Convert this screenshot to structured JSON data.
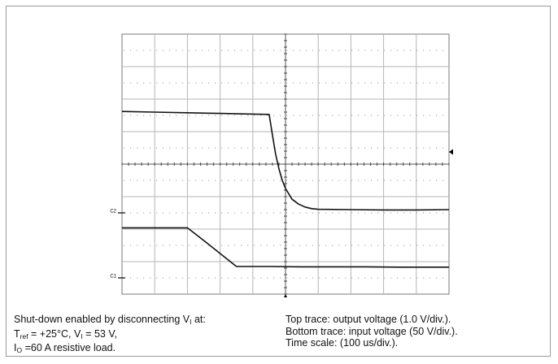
{
  "chart_data": {
    "type": "line",
    "x_divisions": 10,
    "y_divisions": 8,
    "time_per_div_us": 100,
    "series": [
      {
        "channel": "C2",
        "x": [
          0,
          10,
          20,
          30,
          40,
          45,
          46,
          47,
          48,
          49,
          50,
          52,
          54,
          56,
          58,
          60,
          70,
          80,
          90,
          100
        ],
        "y": [
          5.62,
          5.6,
          5.58,
          5.56,
          5.54,
          5.53,
          4.9,
          4.3,
          3.85,
          3.5,
          3.25,
          2.92,
          2.77,
          2.68,
          2.63,
          2.61,
          2.6,
          2.59,
          2.59,
          2.6
        ]
      },
      {
        "channel": "C1",
        "x": [
          0,
          10,
          15,
          20,
          25,
          30,
          35,
          45,
          55,
          65,
          75,
          85,
          100
        ],
        "y": [
          2.04,
          2.04,
          2.04,
          2.04,
          1.65,
          1.25,
          0.85,
          0.85,
          0.84,
          0.84,
          0.84,
          0.83,
          0.83
        ]
      }
    ],
    "ground_markers": [
      {
        "label": "C2",
        "division": 2.5
      },
      {
        "label": "C1",
        "division": 0.5
      }
    ]
  },
  "caption": {
    "left": {
      "line1_text": "Shut-down enabled by disconnecting V",
      "line1_sub": "I",
      "line1_tail": " at:",
      "line2_t": "T",
      "line2_t_sub": "ref",
      "line2_mid": " = +25°C, V",
      "line2_v_sub": "I",
      "line2_tail": " = 53 V,",
      "line3_i": "I",
      "line3_i_sub": "O",
      "line3_tail": " =60 A resistive load."
    },
    "right": {
      "line1": "Top trace: output voltage (1.0 V/div.).",
      "line2": "Bottom trace: input voltage (50 V/div.).",
      "line3": "Time scale: (100 us/div.)."
    }
  }
}
